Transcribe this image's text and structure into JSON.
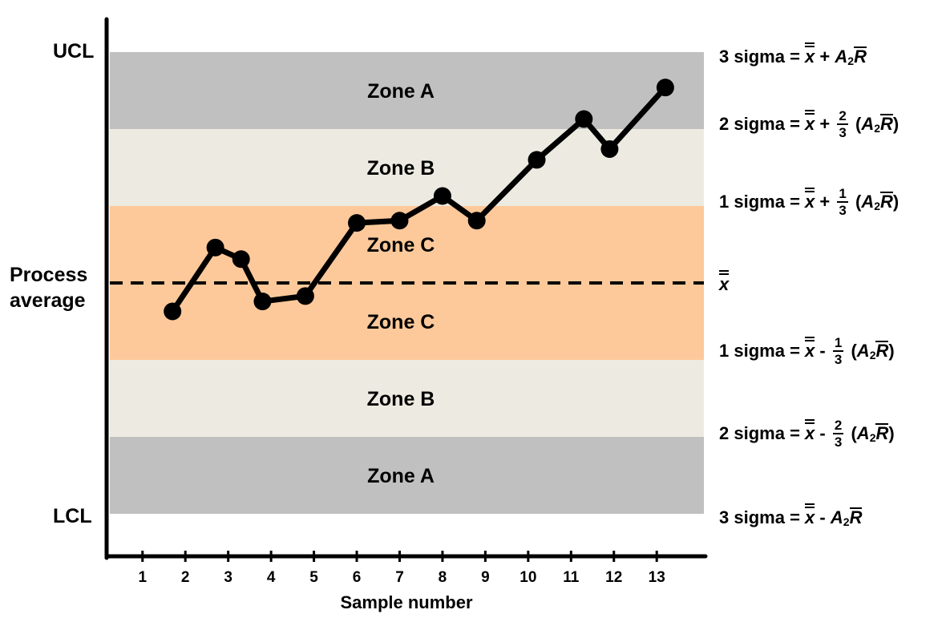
{
  "chart_data": {
    "type": "line",
    "xlabel": "Sample number",
    "x_ticks": [
      "1",
      "2",
      "3",
      "4",
      "5",
      "6",
      "7",
      "8",
      "9",
      "10",
      "11",
      "12",
      "13"
    ],
    "xlim": [
      0.2,
      14.1
    ],
    "ylim": [
      -3.7,
      3.4
    ],
    "center_line": 0,
    "zones": [
      {
        "label": "Zone A",
        "from": 2,
        "to": 3,
        "color": "#c0c0c0"
      },
      {
        "label": "Zone B",
        "from": 1,
        "to": 2,
        "color": "#edebe1"
      },
      {
        "label": "Zone C",
        "from": 0,
        "to": 1,
        "color": "#fdc99a"
      },
      {
        "label": "Zone C",
        "from": -1,
        "to": 0,
        "color": "#fdc99a"
      },
      {
        "label": "Zone B",
        "from": -2,
        "to": -1,
        "color": "#edebe1"
      },
      {
        "label": "Zone A",
        "from": -3,
        "to": -2,
        "color": "#c0c0c0"
      }
    ],
    "series": [
      {
        "x": [
          1.7,
          2.7,
          3.3,
          3.8,
          4.8,
          6.0,
          7.0,
          8.0,
          8.8,
          10.2,
          11.3,
          11.9,
          13.2
        ],
        "y": [
          -0.37,
          0.46,
          0.31,
          -0.24,
          -0.17,
          0.78,
          0.81,
          1.13,
          0.81,
          1.6,
          2.13,
          1.74,
          2.54
        ],
        "color": "#000000"
      }
    ],
    "grid": false
  },
  "labels": {
    "ucl": "UCL",
    "lcl": "LCL",
    "process_average": [
      "Process",
      "average"
    ]
  },
  "formulas": {
    "plus3": {
      "sigma": "3 sigma",
      "eq": "=",
      "op": "+"
    },
    "plus2": {
      "sigma": "2 sigma",
      "eq": "=",
      "op": "+",
      "num": "2",
      "den": "3"
    },
    "plus1": {
      "sigma": "1 sigma",
      "eq": "=",
      "op": "+",
      "num": "1",
      "den": "3"
    },
    "center": {
      "symbol": "x"
    },
    "minus1": {
      "sigma": "1 sigma",
      "eq": "=",
      "op": "-",
      "num": "1",
      "den": "3"
    },
    "minus2": {
      "sigma": "2 sigma",
      "eq": "=",
      "op": "-",
      "num": "2",
      "den": "3"
    },
    "minus3": {
      "sigma": "3 sigma",
      "eq": "=",
      "op": "-"
    },
    "x": "x",
    "A": "A",
    "sub2": "2",
    "R": "R"
  }
}
